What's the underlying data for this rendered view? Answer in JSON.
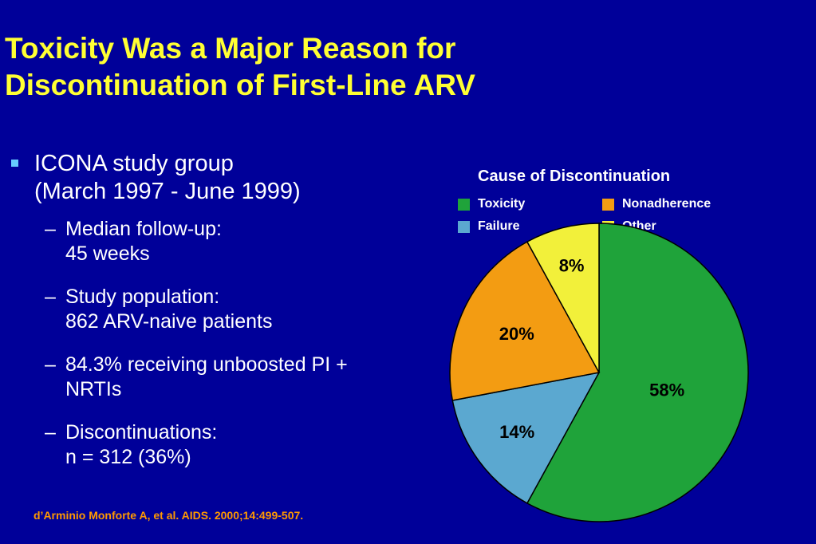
{
  "slide": {
    "title_line1": "Toxicity Was a Major Reason for",
    "title_line2": "Discontinuation of First-Line ARV",
    "citation": "d’Arminio Monforte A, et al. AIDS. 2000;14:499-507."
  },
  "bullets": {
    "main_line1": "ICONA study group",
    "main_line2": "(March 1997 - June 1999)",
    "sub": [
      {
        "dash": "–",
        "line1": "Median follow-up:",
        "line2": "45 weeks"
      },
      {
        "dash": "–",
        "line1": "Study population:",
        "line2": "862 ARV-naive patients"
      },
      {
        "dash": "–",
        "line1": "84.3% receiving unboosted PI +",
        "line2": "NRTIs"
      },
      {
        "dash": "–",
        "line1": "Discontinuations:",
        "line2": "n = 312 (36%)"
      }
    ]
  },
  "chart_data": {
    "type": "pie",
    "title": "Cause of Discontinuation",
    "legend_position": "top",
    "start_angle_deg": 0,
    "direction": "clockwise",
    "slices": [
      {
        "name": "Toxicity",
        "value": 58,
        "label": "58%",
        "color": "#1fa33a"
      },
      {
        "name": "Failure",
        "value": 14,
        "label": "14%",
        "color": "#5ba8d0"
      },
      {
        "name": "Nonadherence",
        "value": 20,
        "label": "20%",
        "color": "#f39c12"
      },
      {
        "name": "Other",
        "value": 8,
        "label": "8%",
        "color": "#f2f03a"
      }
    ],
    "legend": [
      {
        "name": "Toxicity",
        "color": "#1fa33a"
      },
      {
        "name": "Nonadherence",
        "color": "#f39c12"
      },
      {
        "name": "Failure",
        "color": "#5ba8d0"
      },
      {
        "name": "Other",
        "color": "#f2f03a"
      }
    ]
  }
}
